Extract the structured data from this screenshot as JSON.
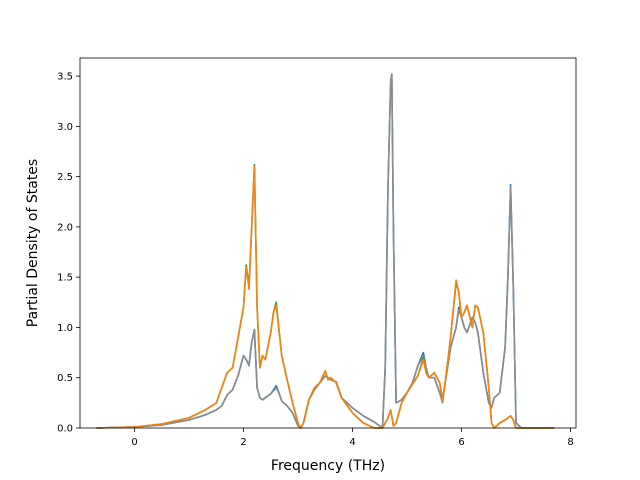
{
  "chart_data": {
    "type": "line",
    "xlabel": "Frequency (THz)",
    "ylabel": "Partial Density of States",
    "xlim": [
      -1.0,
      8.1
    ],
    "ylim": [
      0.0,
      3.68
    ],
    "xticks": [
      0,
      2,
      4,
      6,
      8
    ],
    "yticks": [
      0.0,
      0.5,
      1.0,
      1.5,
      2.0,
      2.5,
      3.0,
      3.5
    ],
    "xtick_labels": [
      "0",
      "2",
      "4",
      "6",
      "8"
    ],
    "ytick_labels": [
      "0.0",
      "0.5",
      "1.0",
      "1.5",
      "2.0",
      "2.5",
      "3.0",
      "3.5"
    ],
    "grid": false,
    "series": [
      {
        "color": "#1f77b4",
        "x": [
          -0.7,
          0.0,
          0.5,
          1.0,
          1.3,
          1.5,
          1.6,
          1.7,
          1.8,
          1.9,
          2.0,
          2.05,
          2.1,
          2.15,
          2.2,
          2.25,
          2.3,
          2.35,
          2.4,
          2.5,
          2.6,
          2.65,
          2.7,
          2.8,
          2.9,
          3.0,
          3.05,
          3.1,
          3.2,
          3.3,
          3.4,
          3.5,
          3.6,
          3.7,
          3.8,
          4.0,
          4.2,
          4.4,
          4.55,
          4.6,
          4.65,
          4.7,
          4.72,
          4.75,
          4.8,
          4.9,
          5.0,
          5.1,
          5.2,
          5.3,
          5.35,
          5.4,
          5.5,
          5.6,
          5.65,
          5.7,
          5.8,
          5.9,
          5.95,
          6.0,
          6.05,
          6.1,
          6.2,
          6.25,
          6.3,
          6.4,
          6.5,
          6.55,
          6.6,
          6.7,
          6.8,
          6.85,
          6.9,
          6.95,
          7.0,
          7.1,
          7.7
        ],
        "values": [
          0,
          0.01,
          0.03,
          0.08,
          0.13,
          0.18,
          0.22,
          0.33,
          0.38,
          0.52,
          0.72,
          0.68,
          0.62,
          0.85,
          0.98,
          0.4,
          0.3,
          0.28,
          0.3,
          0.34,
          0.42,
          0.35,
          0.27,
          0.22,
          0.15,
          0.02,
          0.0,
          0.05,
          0.28,
          0.38,
          0.45,
          0.52,
          0.48,
          0.46,
          0.3,
          0.2,
          0.12,
          0.06,
          0.0,
          0.6,
          2.4,
          3.45,
          3.52,
          2.0,
          0.25,
          0.28,
          0.35,
          0.45,
          0.62,
          0.75,
          0.6,
          0.5,
          0.5,
          0.35,
          0.27,
          0.45,
          0.8,
          1.0,
          1.2,
          1.1,
          1.0,
          0.95,
          1.1,
          1.05,
          0.95,
          0.55,
          0.25,
          0.2,
          0.3,
          0.35,
          0.8,
          1.5,
          2.42,
          1.4,
          0.05,
          0.0,
          0.0
        ]
      },
      {
        "color": "#8c8c8c",
        "x": [
          -0.7,
          0.0,
          0.5,
          1.0,
          1.3,
          1.5,
          1.6,
          1.7,
          1.8,
          1.9,
          2.0,
          2.05,
          2.1,
          2.15,
          2.2,
          2.25,
          2.3,
          2.35,
          2.4,
          2.5,
          2.6,
          2.65,
          2.7,
          2.8,
          2.9,
          3.0,
          3.05,
          3.1,
          3.2,
          3.3,
          3.4,
          3.5,
          3.6,
          3.7,
          3.8,
          4.0,
          4.2,
          4.4,
          4.55,
          4.6,
          4.65,
          4.7,
          4.72,
          4.75,
          4.8,
          4.9,
          5.0,
          5.1,
          5.2,
          5.3,
          5.35,
          5.4,
          5.5,
          5.6,
          5.65,
          5.7,
          5.8,
          5.9,
          5.95,
          6.0,
          6.05,
          6.1,
          6.2,
          6.25,
          6.3,
          6.4,
          6.5,
          6.55,
          6.6,
          6.7,
          6.8,
          6.85,
          6.9,
          6.95,
          7.0,
          7.1,
          7.7
        ],
        "values": [
          0,
          0.01,
          0.03,
          0.08,
          0.13,
          0.18,
          0.22,
          0.33,
          0.38,
          0.52,
          0.72,
          0.68,
          0.62,
          0.85,
          0.98,
          0.4,
          0.3,
          0.28,
          0.3,
          0.34,
          0.4,
          0.35,
          0.27,
          0.22,
          0.15,
          0.02,
          0.0,
          0.05,
          0.28,
          0.38,
          0.45,
          0.52,
          0.48,
          0.46,
          0.3,
          0.2,
          0.12,
          0.06,
          0.0,
          0.6,
          2.4,
          3.45,
          3.52,
          2.0,
          0.25,
          0.28,
          0.35,
          0.45,
          0.62,
          0.72,
          0.6,
          0.5,
          0.5,
          0.35,
          0.25,
          0.45,
          0.8,
          1.0,
          1.18,
          1.1,
          1.0,
          0.95,
          1.1,
          1.05,
          0.95,
          0.55,
          0.25,
          0.2,
          0.3,
          0.35,
          0.8,
          1.5,
          2.4,
          1.4,
          0.05,
          0.0,
          0.0
        ]
      },
      {
        "color": "#2ca02c",
        "x": [
          -0.7,
          0.0,
          0.5,
          1.0,
          1.3,
          1.5,
          1.6,
          1.7,
          1.8,
          1.9,
          2.0,
          2.05,
          2.1,
          2.15,
          2.2,
          2.25,
          2.3,
          2.35,
          2.4,
          2.5,
          2.55,
          2.6,
          2.7,
          2.8,
          2.9,
          3.0,
          3.05,
          3.1,
          3.2,
          3.3,
          3.4,
          3.5,
          3.55,
          3.6,
          3.7,
          3.8,
          4.0,
          4.2,
          4.4,
          4.55,
          4.6,
          4.65,
          4.7,
          4.75,
          4.8,
          4.9,
          5.0,
          5.2,
          5.3,
          5.35,
          5.4,
          5.5,
          5.6,
          5.65,
          5.7,
          5.8,
          5.9,
          5.95,
          6.0,
          6.05,
          6.1,
          6.2,
          6.25,
          6.3,
          6.4,
          6.5,
          6.55,
          6.6,
          6.7,
          6.8,
          6.85,
          6.9,
          6.95,
          7.0,
          7.7
        ],
        "values": [
          0,
          0.01,
          0.04,
          0.1,
          0.18,
          0.25,
          0.4,
          0.55,
          0.6,
          0.9,
          1.2,
          1.62,
          1.4,
          2.0,
          2.62,
          1.2,
          0.6,
          0.72,
          0.68,
          0.95,
          1.15,
          1.25,
          0.72,
          0.48,
          0.25,
          0.05,
          0.0,
          0.05,
          0.28,
          0.4,
          0.45,
          0.57,
          0.48,
          0.5,
          0.45,
          0.3,
          0.15,
          0.05,
          0.0,
          0.0,
          0.05,
          0.1,
          0.18,
          0.02,
          0.05,
          0.25,
          0.35,
          0.52,
          0.7,
          0.55,
          0.5,
          0.55,
          0.45,
          0.28,
          0.45,
          0.9,
          1.45,
          1.35,
          1.1,
          1.15,
          1.22,
          1.0,
          1.22,
          1.2,
          0.95,
          0.4,
          0.05,
          0.0,
          0.05,
          0.08,
          0.1,
          0.12,
          0.08,
          0.0,
          0.0
        ]
      },
      {
        "color": "#ff7f0e",
        "x": [
          -0.7,
          0.0,
          0.5,
          1.0,
          1.3,
          1.5,
          1.6,
          1.7,
          1.8,
          1.9,
          2.0,
          2.05,
          2.1,
          2.15,
          2.2,
          2.25,
          2.3,
          2.35,
          2.4,
          2.5,
          2.55,
          2.6,
          2.7,
          2.8,
          2.9,
          3.0,
          3.05,
          3.1,
          3.2,
          3.3,
          3.4,
          3.5,
          3.55,
          3.6,
          3.7,
          3.8,
          4.0,
          4.2,
          4.4,
          4.55,
          4.6,
          4.65,
          4.7,
          4.75,
          4.8,
          4.9,
          5.0,
          5.2,
          5.3,
          5.35,
          5.4,
          5.5,
          5.6,
          5.65,
          5.7,
          5.8,
          5.9,
          5.95,
          6.0,
          6.05,
          6.1,
          6.2,
          6.25,
          6.3,
          6.4,
          6.5,
          6.55,
          6.6,
          6.7,
          6.8,
          6.85,
          6.9,
          6.95,
          7.0,
          7.7
        ],
        "values": [
          0,
          0.01,
          0.04,
          0.1,
          0.18,
          0.25,
          0.4,
          0.55,
          0.6,
          0.9,
          1.2,
          1.6,
          1.38,
          2.0,
          2.6,
          1.2,
          0.6,
          0.72,
          0.68,
          0.95,
          1.15,
          1.22,
          0.72,
          0.48,
          0.25,
          0.05,
          0.0,
          0.05,
          0.28,
          0.4,
          0.45,
          0.57,
          0.48,
          0.5,
          0.45,
          0.3,
          0.15,
          0.05,
          0.0,
          0.0,
          0.05,
          0.1,
          0.18,
          0.02,
          0.05,
          0.25,
          0.35,
          0.52,
          0.68,
          0.55,
          0.5,
          0.55,
          0.45,
          0.28,
          0.45,
          0.9,
          1.47,
          1.35,
          1.1,
          1.15,
          1.22,
          1.0,
          1.22,
          1.2,
          0.95,
          0.4,
          0.05,
          0.0,
          0.05,
          0.08,
          0.1,
          0.12,
          0.08,
          0.0,
          0.0
        ]
      }
    ]
  }
}
